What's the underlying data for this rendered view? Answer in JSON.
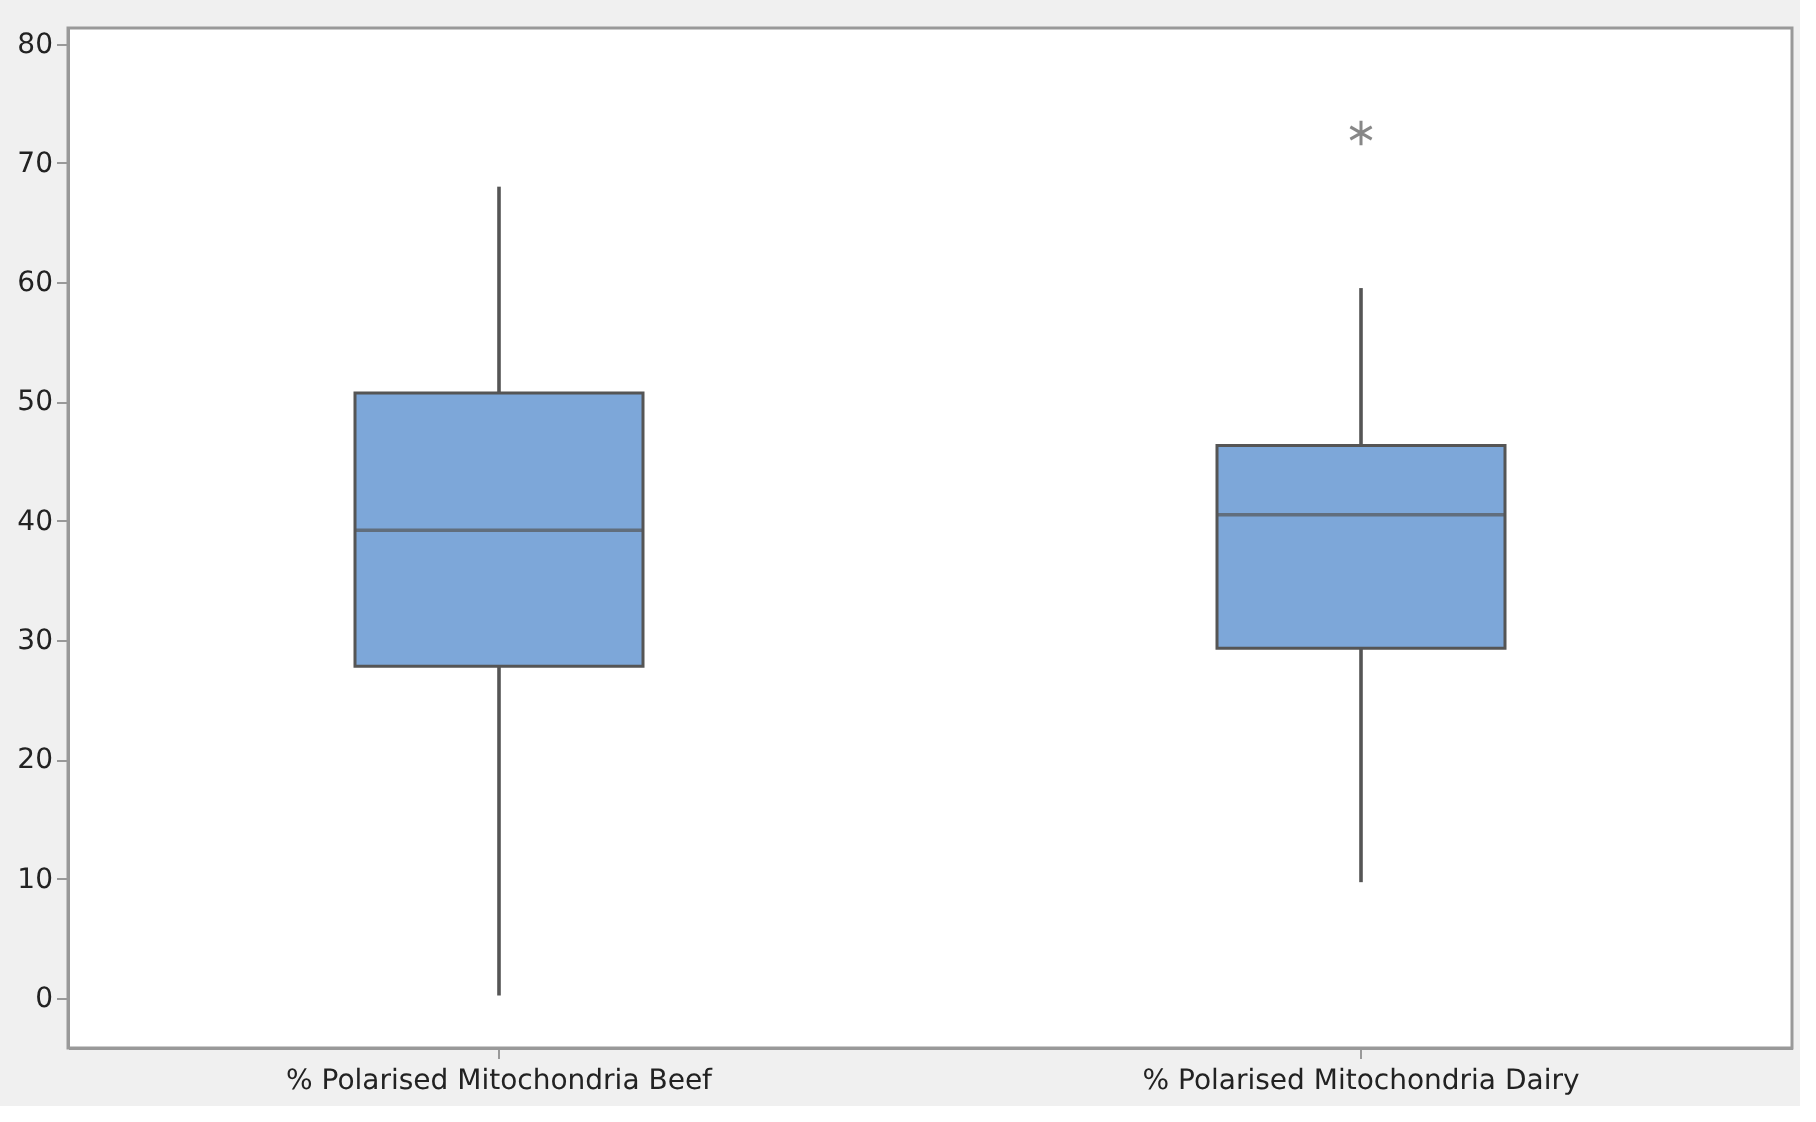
{
  "chart_data": {
    "type": "box",
    "categories": [
      "% Polarised Mitochondria Beef",
      "% Polarised Mitochondria Dairy"
    ],
    "boxes": [
      {
        "low": 0.2,
        "q1": 27.8,
        "median": 39.2,
        "q3": 50.7,
        "high": 68
      },
      {
        "low": 9.7,
        "q1": 29.3,
        "median": 40.5,
        "q3": 46.3,
        "high": 59.5,
        "outliers": [
          72.5
        ]
      }
    ],
    "color": "#7da7d9",
    "ylim": [
      -4.2,
      81.3
    ],
    "yticks": [
      0,
      10,
      20,
      30,
      40,
      50,
      60,
      70,
      80
    ],
    "grid": false
  }
}
